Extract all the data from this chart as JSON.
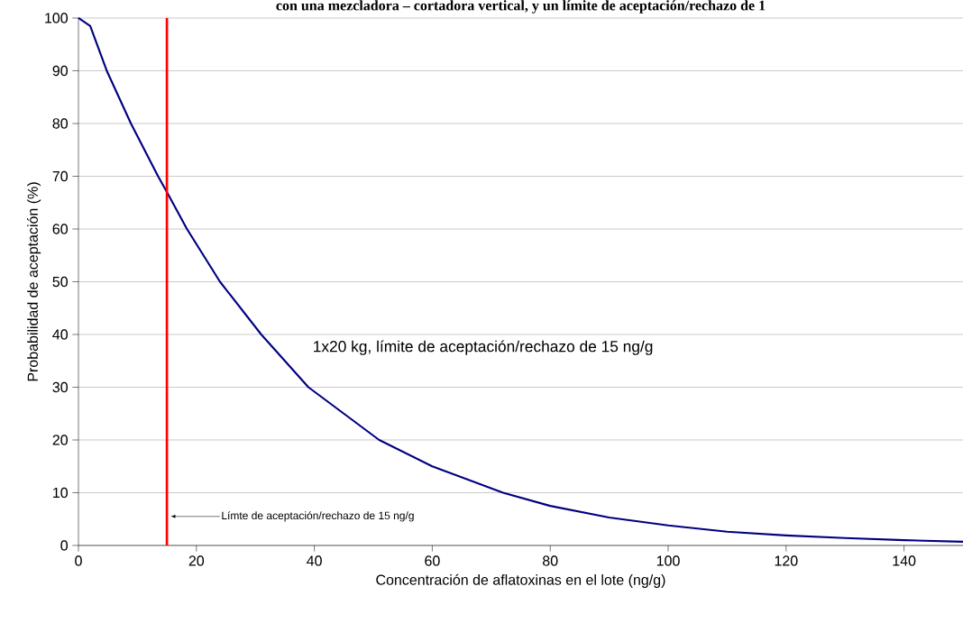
{
  "chart_data": {
    "type": "line",
    "title": "con una mezcladora – cortadora vertical, y un límite de aceptación/rechazo de 1",
    "xlabel": "Concentración de aflatoxinas en el lote (ng/g)",
    "ylabel": "Probabilidad de aceptación (%)",
    "x": [
      0,
      2,
      4.8,
      8.9,
      13.5,
      15,
      18.4,
      24,
      31,
      39,
      51,
      60,
      72,
      80,
      90,
      100,
      110,
      120,
      130,
      140,
      150
    ],
    "series": [
      {
        "name": "1x20 kg, límite de aceptación/rechazo de 15 ng/g",
        "color": "#000080",
        "values": [
          100,
          98.5,
          90,
          80,
          70,
          67,
          60,
          50,
          40,
          30,
          20,
          15,
          10,
          7.5,
          5.3,
          3.8,
          2.6,
          1.9,
          1.4,
          1.0,
          0.7
        ]
      }
    ],
    "xlim": [
      0,
      150
    ],
    "ylim": [
      0,
      100
    ],
    "xticks": [
      0,
      20,
      40,
      60,
      80,
      100,
      120,
      140
    ],
    "yticks": [
      0,
      10,
      20,
      30,
      40,
      50,
      60,
      70,
      80,
      90,
      100
    ],
    "ref_lines": [
      {
        "axis": "x",
        "value": 15,
        "label": "Límte de aceptación/rechazo de 15 ng/g",
        "color": "#ff0000"
      }
    ],
    "grid": "y",
    "legend": false,
    "marker": "none",
    "line_style": "solid"
  }
}
